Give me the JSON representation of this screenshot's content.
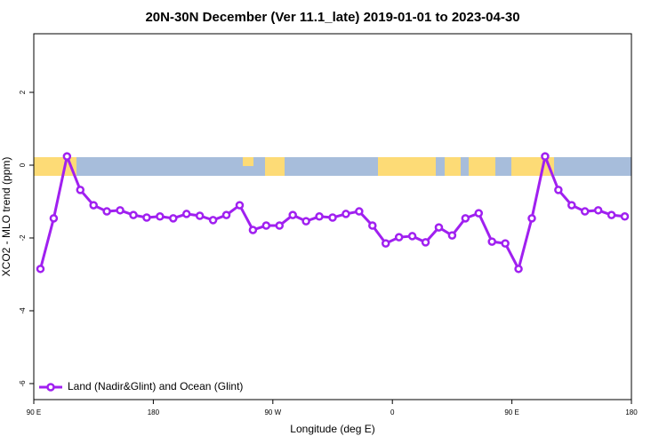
{
  "chart_data": {
    "type": "line",
    "title": "20N-30N December (Ver 11.1_late)   2019-01-01 to 2023-04-30",
    "x_label": "Longitude (deg E)",
    "y_label": "XCO2 - MLO trend (ppm)",
    "x": [
      95,
      105,
      115,
      125,
      135,
      145,
      155,
      165,
      175,
      185,
      195,
      205,
      215,
      225,
      235,
      245,
      255,
      265,
      275,
      285,
      295,
      305,
      315,
      325,
      335,
      345,
      355,
      365,
      375,
      385,
      395,
      405,
      415,
      425,
      435,
      445,
      455,
      465,
      475,
      485,
      495,
      505,
      515,
      525,
      535
    ],
    "series": [
      {
        "name": "Land (Nadir&Glint) and Ocean (Glint)",
        "color": "#a020f0",
        "values": [
          -2.85,
          -1.46,
          0.24,
          -0.68,
          -1.1,
          -1.27,
          -1.24,
          -1.37,
          -1.44,
          -1.41,
          -1.46,
          -1.34,
          -1.39,
          -1.51,
          -1.37,
          -1.1,
          -1.78,
          -1.66,
          -1.66,
          -1.37,
          -1.54,
          -1.41,
          -1.44,
          -1.34,
          -1.27,
          -1.66,
          -2.15,
          -1.98,
          -1.95,
          -2.12,
          -1.71,
          -1.93,
          -1.46,
          -1.32,
          -2.1,
          -2.15,
          -2.85,
          -1.46,
          0.24,
          -0.68,
          -1.1,
          -1.27,
          -1.24,
          -1.37,
          -1.41
        ]
      }
    ],
    "xlim": [
      90,
      540
    ],
    "xticks": [
      {
        "value": 90,
        "label": "90 E"
      },
      180,
      {
        "value": 270,
        "label": "90 W"
      },
      {
        "value": 360,
        "label": "0"
      },
      {
        "value": 450,
        "label": "90 E"
      },
      {
        "value": 540,
        "label": "180"
      }
    ],
    "ylim": [
      -6.44,
      3.61
    ],
    "yticks": [
      -6,
      -4,
      -2,
      0,
      2
    ],
    "legend": "bottom-left"
  }
}
